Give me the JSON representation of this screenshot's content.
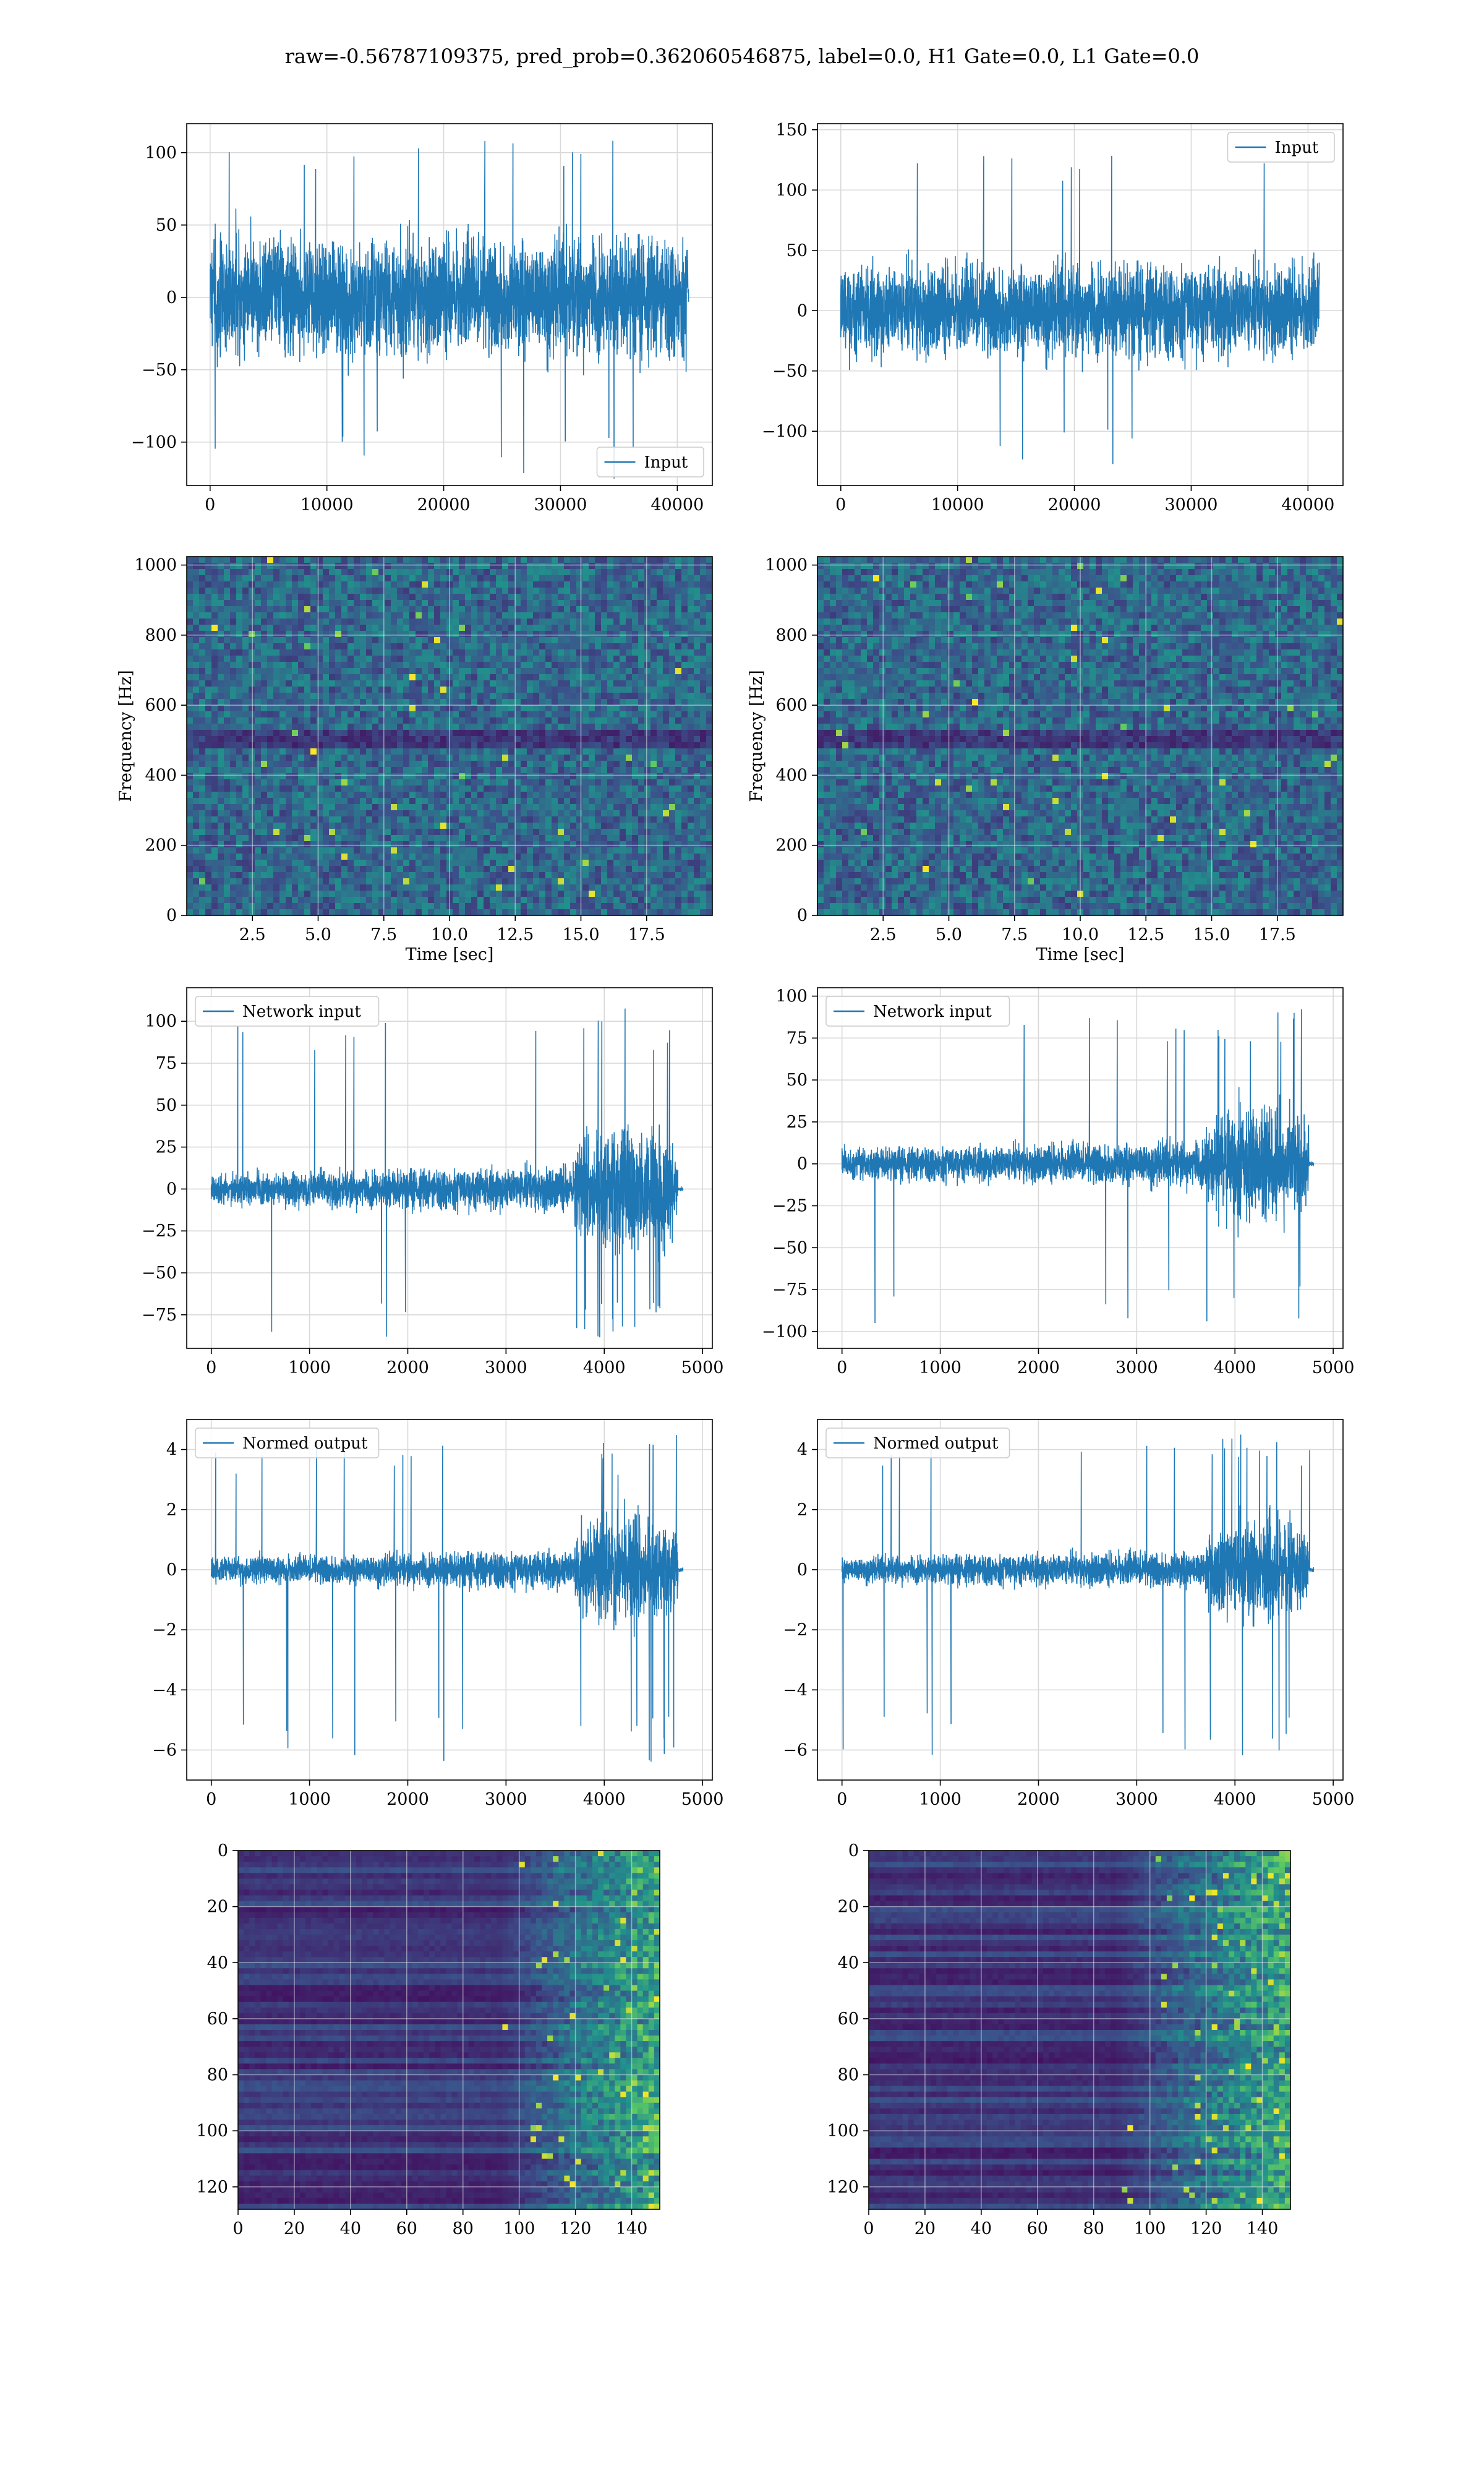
{
  "figure": {
    "title": "raw=-0.56787109375, pred_prob=0.362060546875, label=0.0, H1 Gate=0.0, L1 Gate=0.0"
  },
  "colors": {
    "line": "#1f77b4",
    "grid": "#d9d9d9",
    "viridis_dark": "#440154",
    "viridis_mid": "#21918c",
    "viridis_bright": "#fde725"
  },
  "chart_data": [
    {
      "id": "p1",
      "type": "line",
      "xlim": [
        -2000,
        43000
      ],
      "ylim": [
        -130,
        120
      ],
      "xticks": [
        0,
        10000,
        20000,
        30000,
        40000
      ],
      "xtick_labels": [
        "0",
        "10000",
        "20000",
        "30000",
        "40000"
      ],
      "yticks": [
        -100,
        -50,
        0,
        50,
        100
      ],
      "ytick_labels": [
        "−100",
        "−50",
        "0",
        "50",
        "100"
      ],
      "xlabel": "",
      "ylabel": "",
      "grid": true,
      "legend": {
        "placement": "lower-right",
        "entries": [
          "Input"
        ]
      },
      "series": [
        {
          "name": "Input",
          "x_range": [
            0,
            40960
          ],
          "band": [
            -58,
            58
          ],
          "spike_max": 118,
          "spike_min": -128
        }
      ]
    },
    {
      "id": "p2",
      "type": "line",
      "xlim": [
        -2000,
        43000
      ],
      "ylim": [
        -145,
        155
      ],
      "xticks": [
        0,
        10000,
        20000,
        30000,
        40000
      ],
      "xtick_labels": [
        "0",
        "10000",
        "20000",
        "30000",
        "40000"
      ],
      "yticks": [
        -100,
        -50,
        0,
        50,
        100,
        150
      ],
      "ytick_labels": [
        "−100",
        "−50",
        "0",
        "50",
        "100",
        "150"
      ],
      "xlabel": "",
      "ylabel": "",
      "grid": true,
      "legend": {
        "placement": "upper-right",
        "entries": [
          "Input"
        ]
      },
      "series": [
        {
          "name": "Input",
          "x_range": [
            0,
            40960
          ],
          "band": [
            -55,
            55
          ],
          "spike_max": 140,
          "spike_min": -130
        }
      ]
    },
    {
      "id": "p3",
      "type": "heatmap",
      "xlim": [
        0,
        20
      ],
      "ylim": [
        0,
        1024
      ],
      "xticks": [
        2.5,
        5.0,
        7.5,
        10.0,
        12.5,
        15.0,
        17.5
      ],
      "xtick_labels": [
        "2.5",
        "5.0",
        "7.5",
        "10.0",
        "12.5",
        "15.0",
        "17.5"
      ],
      "yticks": [
        0,
        200,
        400,
        600,
        800,
        1000
      ],
      "ytick_labels": [
        "0",
        "200",
        "400",
        "600",
        "800",
        "1000"
      ],
      "xlabel": "Time [sec]",
      "ylabel": "Frequency [Hz]",
      "grid": true
    },
    {
      "id": "p4",
      "type": "heatmap",
      "xlim": [
        0,
        20
      ],
      "ylim": [
        0,
        1024
      ],
      "xticks": [
        2.5,
        5.0,
        7.5,
        10.0,
        12.5,
        15.0,
        17.5
      ],
      "xtick_labels": [
        "2.5",
        "5.0",
        "7.5",
        "10.0",
        "12.5",
        "15.0",
        "17.5"
      ],
      "yticks": [
        0,
        200,
        400,
        600,
        800,
        1000
      ],
      "ytick_labels": [
        "0",
        "200",
        "400",
        "600",
        "800",
        "1000"
      ],
      "xlabel": "Time [sec]",
      "ylabel": "Frequency [Hz]",
      "grid": true
    },
    {
      "id": "p5",
      "type": "line",
      "xlim": [
        -250,
        5100
      ],
      "ylim": [
        -95,
        120
      ],
      "xticks": [
        0,
        1000,
        2000,
        3000,
        4000,
        5000
      ],
      "xtick_labels": [
        "0",
        "1000",
        "2000",
        "3000",
        "4000",
        "5000"
      ],
      "yticks": [
        -75,
        -50,
        -25,
        0,
        25,
        50,
        75,
        100
      ],
      "ytick_labels": [
        "−75",
        "−50",
        "−25",
        "0",
        "25",
        "50",
        "75",
        "100"
      ],
      "xlabel": "",
      "ylabel": "",
      "grid": true,
      "legend": {
        "placement": "upper-left",
        "entries": [
          "Network input"
        ]
      },
      "series": [
        {
          "name": "Network input",
          "x_range": [
            0,
            4800
          ],
          "burst_start": 3700,
          "burst_end": 4750,
          "band": [
            -15,
            15
          ],
          "burst_band": [
            -55,
            55
          ],
          "spike_max": 108,
          "spike_min": -90
        }
      ]
    },
    {
      "id": "p6",
      "type": "line",
      "xlim": [
        -250,
        5100
      ],
      "ylim": [
        -110,
        105
      ],
      "xticks": [
        0,
        1000,
        2000,
        3000,
        4000,
        5000
      ],
      "xtick_labels": [
        "0",
        "1000",
        "2000",
        "3000",
        "4000",
        "5000"
      ],
      "yticks": [
        -100,
        -75,
        -50,
        -25,
        0,
        25,
        50,
        75,
        100
      ],
      "ytick_labels": [
        "−100",
        "−75",
        "−50",
        "−25",
        "0",
        "25",
        "50",
        "75",
        "100"
      ],
      "xlabel": "",
      "ylabel": "",
      "grid": true,
      "legend": {
        "placement": "upper-left",
        "entries": [
          "Network input"
        ]
      },
      "series": [
        {
          "name": "Network input",
          "x_range": [
            0,
            4800
          ],
          "burst_start": 3700,
          "burst_end": 4750,
          "band": [
            -15,
            15
          ],
          "burst_band": [
            -50,
            50
          ],
          "spike_max": 95,
          "spike_min": -97
        }
      ]
    },
    {
      "id": "p7",
      "type": "line",
      "xlim": [
        -250,
        5100
      ],
      "ylim": [
        -7,
        5
      ],
      "xticks": [
        0,
        1000,
        2000,
        3000,
        4000,
        5000
      ],
      "xtick_labels": [
        "0",
        "1000",
        "2000",
        "3000",
        "4000",
        "5000"
      ],
      "yticks": [
        -6,
        -4,
        -2,
        0,
        2,
        4
      ],
      "ytick_labels": [
        "−6",
        "−4",
        "−2",
        "0",
        "2",
        "4"
      ],
      "xlabel": "",
      "ylabel": "",
      "grid": true,
      "legend": {
        "placement": "upper-left",
        "entries": [
          "Normed output"
        ]
      },
      "series": [
        {
          "name": "Normed output",
          "x_range": [
            0,
            4800
          ],
          "burst_start": 3700,
          "burst_end": 4750,
          "band": [
            -0.7,
            0.7
          ],
          "burst_band": [
            -2.6,
            2.6
          ],
          "spike_max": 4.5,
          "spike_min": -6.5
        }
      ]
    },
    {
      "id": "p8",
      "type": "line",
      "xlim": [
        -250,
        5100
      ],
      "ylim": [
        -7,
        5
      ],
      "xticks": [
        0,
        1000,
        2000,
        3000,
        4000,
        5000
      ],
      "xtick_labels": [
        "0",
        "1000",
        "2000",
        "3000",
        "4000",
        "5000"
      ],
      "yticks": [
        -6,
        -4,
        -2,
        0,
        2,
        4
      ],
      "ytick_labels": [
        "−6",
        "−4",
        "−2",
        "0",
        "2",
        "4"
      ],
      "xlabel": "",
      "ylabel": "",
      "grid": true,
      "legend": {
        "placement": "upper-left",
        "entries": [
          "Normed output"
        ]
      },
      "series": [
        {
          "name": "Normed output",
          "x_range": [
            0,
            4800
          ],
          "burst_start": 3700,
          "burst_end": 4750,
          "band": [
            -0.7,
            0.7
          ],
          "burst_band": [
            -2.4,
            2.4
          ],
          "spike_max": 4.5,
          "spike_min": -6.3
        }
      ]
    },
    {
      "id": "p9",
      "type": "heatmap",
      "xlim": [
        0,
        150
      ],
      "ylim": [
        128,
        0
      ],
      "xticks": [
        0,
        20,
        40,
        60,
        80,
        100,
        120,
        140
      ],
      "xtick_labels": [
        "0",
        "20",
        "40",
        "60",
        "80",
        "100",
        "120",
        "140"
      ],
      "yticks": [
        0,
        20,
        40,
        60,
        80,
        100,
        120
      ],
      "ytick_labels": [
        "0",
        "20",
        "40",
        "60",
        "80",
        "100",
        "120"
      ],
      "xlabel": "",
      "ylabel": "",
      "grid": true,
      "activity_onset": 90
    },
    {
      "id": "p10",
      "type": "heatmap",
      "xlim": [
        0,
        150
      ],
      "ylim": [
        128,
        0
      ],
      "xticks": [
        0,
        20,
        40,
        60,
        80,
        100,
        120,
        140
      ],
      "xtick_labels": [
        "0",
        "20",
        "40",
        "60",
        "80",
        "100",
        "120",
        "140"
      ],
      "yticks": [
        0,
        20,
        40,
        60,
        80,
        100,
        120
      ],
      "ytick_labels": [
        "0",
        "20",
        "40",
        "60",
        "80",
        "100",
        "120"
      ],
      "xlabel": "",
      "ylabel": "",
      "grid": true,
      "activity_onset": 85
    }
  ]
}
